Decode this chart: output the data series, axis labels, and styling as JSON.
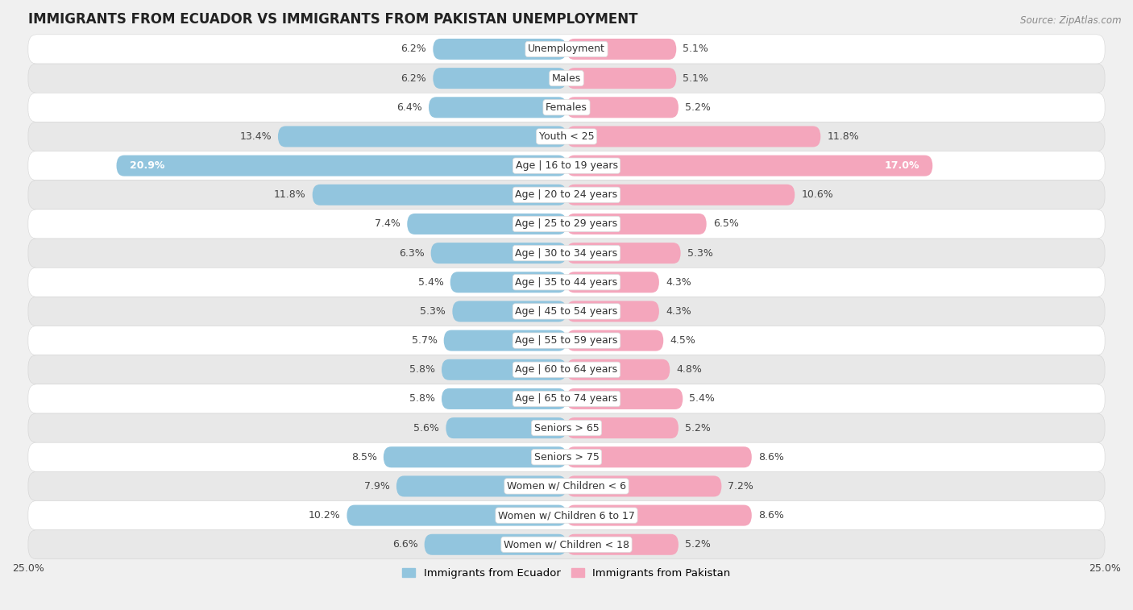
{
  "title": "IMMIGRANTS FROM ECUADOR VS IMMIGRANTS FROM PAKISTAN UNEMPLOYMENT",
  "source": "Source: ZipAtlas.com",
  "categories": [
    "Unemployment",
    "Males",
    "Females",
    "Youth < 25",
    "Age | 16 to 19 years",
    "Age | 20 to 24 years",
    "Age | 25 to 29 years",
    "Age | 30 to 34 years",
    "Age | 35 to 44 years",
    "Age | 45 to 54 years",
    "Age | 55 to 59 years",
    "Age | 60 to 64 years",
    "Age | 65 to 74 years",
    "Seniors > 65",
    "Seniors > 75",
    "Women w/ Children < 6",
    "Women w/ Children 6 to 17",
    "Women w/ Children < 18"
  ],
  "ecuador_values": [
    6.2,
    6.2,
    6.4,
    13.4,
    20.9,
    11.8,
    7.4,
    6.3,
    5.4,
    5.3,
    5.7,
    5.8,
    5.8,
    5.6,
    8.5,
    7.9,
    10.2,
    6.6
  ],
  "pakistan_values": [
    5.1,
    5.1,
    5.2,
    11.8,
    17.0,
    10.6,
    6.5,
    5.3,
    4.3,
    4.3,
    4.5,
    4.8,
    5.4,
    5.2,
    8.6,
    7.2,
    8.6,
    5.2
  ],
  "ecuador_color": "#92C5DE",
  "pakistan_color": "#F4A6BC",
  "ecuador_label": "Immigrants from Ecuador",
  "pakistan_label": "Immigrants from Pakistan",
  "xlim": 25.0,
  "row_color_light": "#ffffff",
  "row_color_dark": "#e8e8e8",
  "title_fontsize": 12,
  "label_fontsize": 9,
  "value_fontsize": 9
}
